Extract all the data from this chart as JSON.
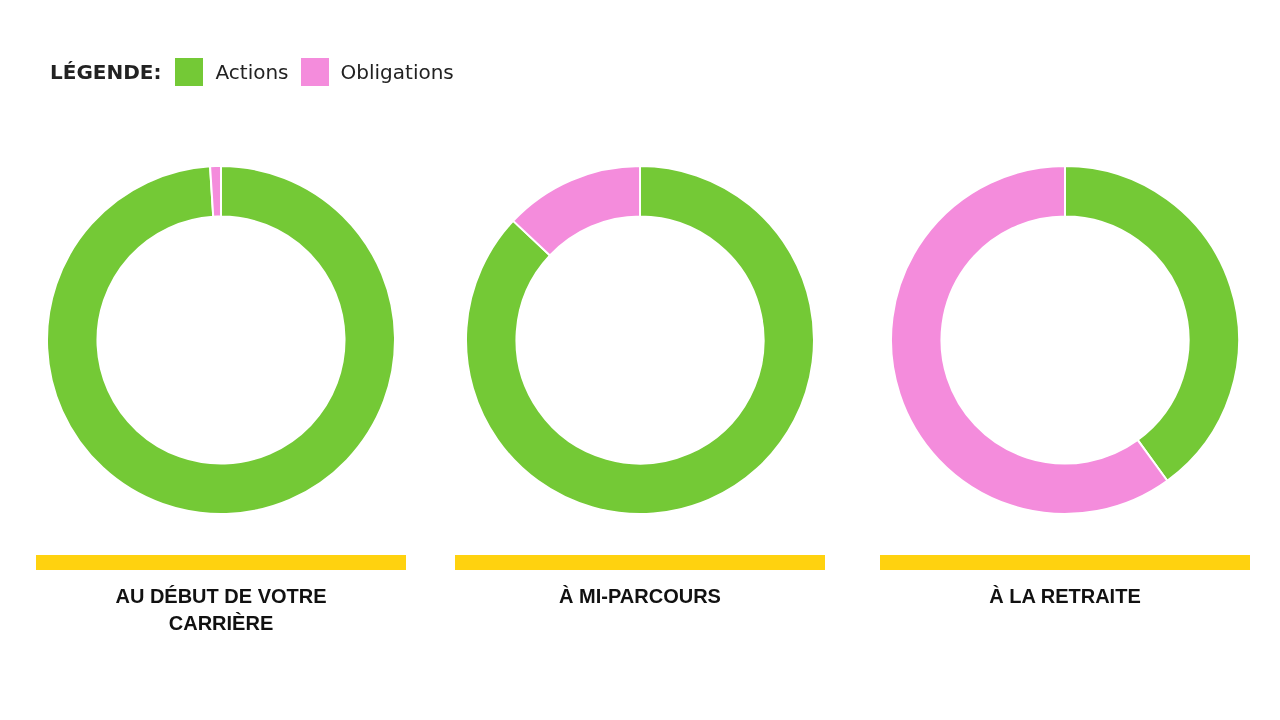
{
  "chart_data": [
    {
      "type": "donut",
      "title": "AU DÉBUT DE VOTRE CARRIÈRE",
      "categories": [
        "Actions",
        "Obligations"
      ],
      "values": [
        99,
        1
      ],
      "colors": [
        "#74c936",
        "#f48cdc"
      ],
      "legend": "top",
      "legend_title": "LÉGENDE:"
    },
    {
      "type": "donut",
      "title": "À MI-PARCOURS",
      "categories": [
        null,
        null
      ],
      "values": [
        87,
        13
      ],
      "colors": [
        "#74c936",
        "#f48cdc"
      ]
    },
    {
      "type": "donut",
      "title": "À LA RETRAITE",
      "categories": [
        null,
        null
      ],
      "values": [
        40,
        60
      ],
      "colors": [
        "#74c936",
        "#f48cdc"
      ]
    }
  ]
}
